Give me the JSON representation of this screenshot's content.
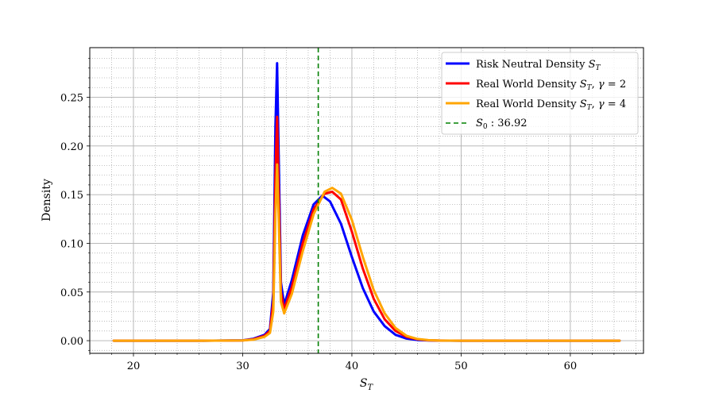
{
  "chart_data": {
    "type": "line",
    "xlabel": "S_T",
    "ylabel": "Density",
    "xlim": [
      16.0,
      66.7
    ],
    "ylim": [
      -0.013,
      0.301
    ],
    "x_ticks": [
      20,
      30,
      40,
      50,
      60
    ],
    "y_ticks": [
      0.0,
      0.05,
      0.1,
      0.15,
      0.2,
      0.25
    ],
    "x_tick_labels": [
      "20",
      "30",
      "40",
      "50",
      "60"
    ],
    "y_tick_labels": [
      "0.00",
      "0.05",
      "0.10",
      "0.15",
      "0.20",
      "0.25"
    ],
    "grid": "major solid, minor dotted",
    "legend_position": "top-right",
    "series": [
      {
        "name": "Risk Neutral Density S_T",
        "color": "#0000ff",
        "x": [
          18.2,
          22,
          26,
          30,
          31,
          32,
          32.5,
          32.8,
          33.0,
          33.15,
          33.3,
          33.5,
          33.8,
          34.5,
          35.5,
          36.5,
          37.3,
          38,
          39,
          40,
          41,
          42,
          43,
          44,
          45,
          46,
          47,
          48,
          50,
          55,
          60,
          64.5
        ],
        "y": [
          0,
          0,
          0,
          0.0004,
          0.002,
          0.006,
          0.012,
          0.05,
          0.22,
          0.285,
          0.19,
          0.06,
          0.037,
          0.062,
          0.108,
          0.14,
          0.149,
          0.143,
          0.12,
          0.086,
          0.054,
          0.03,
          0.015,
          0.006,
          0.0022,
          0.0007,
          0.0002,
          5e-05,
          0,
          0,
          0,
          0
        ]
      },
      {
        "name": "Real World Density S_T, γ = 2",
        "color": "#ff0000",
        "x": [
          18.2,
          22,
          26,
          30,
          31,
          32,
          32.5,
          32.8,
          33.0,
          33.15,
          33.3,
          33.5,
          33.8,
          34.5,
          35.5,
          36.5,
          37.5,
          38.2,
          39,
          40,
          41,
          42,
          43,
          44,
          45,
          46,
          47,
          48,
          50,
          55,
          60,
          64.5
        ],
        "y": [
          0,
          0,
          0,
          0.0003,
          0.0015,
          0.005,
          0.01,
          0.04,
          0.17,
          0.23,
          0.155,
          0.05,
          0.032,
          0.055,
          0.1,
          0.135,
          0.151,
          0.153,
          0.145,
          0.112,
          0.074,
          0.043,
          0.022,
          0.01,
          0.004,
          0.0014,
          0.0004,
          0.0001,
          0,
          0,
          0,
          0
        ]
      },
      {
        "name": "Real World Density S_T, γ = 4",
        "color": "#ffa500",
        "x": [
          18.2,
          22,
          26,
          30,
          31,
          32,
          32.5,
          32.8,
          33.0,
          33.15,
          33.3,
          33.5,
          33.8,
          34.5,
          35.5,
          36.5,
          37.5,
          38.2,
          39,
          40,
          41,
          42,
          43,
          44,
          45,
          46,
          47,
          48,
          50,
          55,
          60,
          64.5
        ],
        "y": [
          0,
          0,
          0,
          0.0002,
          0.001,
          0.004,
          0.008,
          0.03,
          0.13,
          0.181,
          0.125,
          0.04,
          0.028,
          0.048,
          0.092,
          0.13,
          0.153,
          0.157,
          0.151,
          0.124,
          0.086,
          0.052,
          0.028,
          0.013,
          0.005,
          0.0018,
          0.0005,
          0.0001,
          0,
          0,
          0,
          0
        ]
      },
      {
        "name": "S_0 : 36.92",
        "color": "#008000",
        "style": "dashed",
        "vline": 36.92
      }
    ]
  }
}
